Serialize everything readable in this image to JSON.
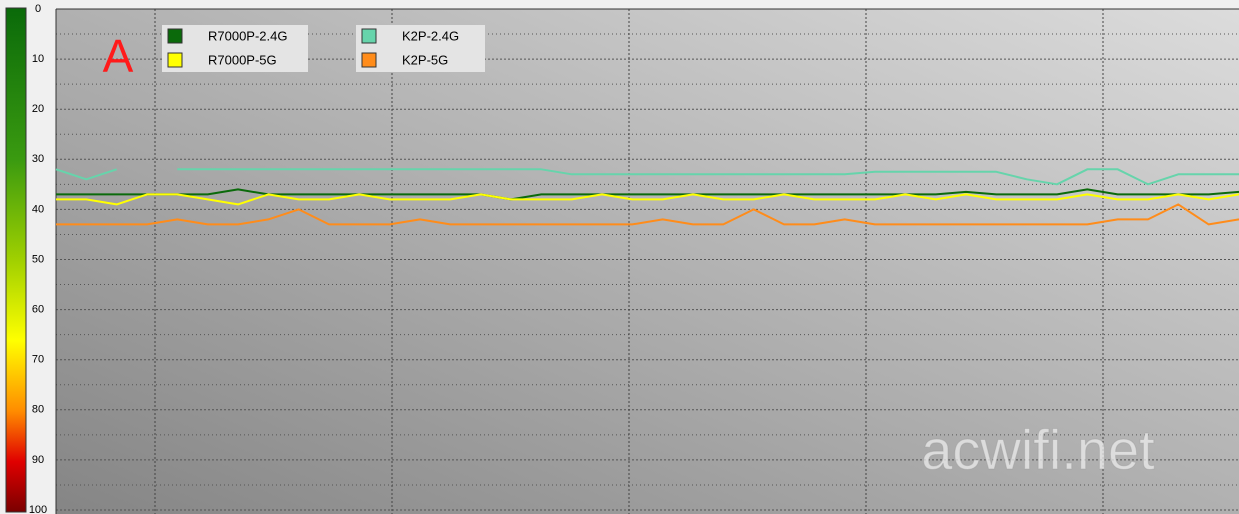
{
  "chart_data": {
    "type": "line",
    "annotation": "A",
    "watermark": "acwifi.net",
    "categories": [
      null,
      null,
      null,
      null,
      null,
      null,
      null,
      null,
      null,
      null,
      null,
      null,
      null,
      null,
      null,
      null,
      null,
      null,
      null,
      null,
      null,
      null,
      null,
      null,
      null,
      null,
      null,
      null,
      null,
      null,
      null,
      null,
      null,
      null,
      null,
      null,
      null,
      null,
      null,
      null
    ],
    "series": [
      {
        "name": "R7000P-2.4G",
        "color": "#0b6a0b",
        "values": [
          37,
          37,
          37,
          37,
          37,
          37,
          36,
          37,
          37,
          37,
          37,
          37,
          37,
          37,
          37,
          38,
          37,
          37,
          37,
          37,
          37,
          37,
          37,
          37,
          37,
          37,
          37,
          37,
          37,
          37,
          36.5,
          37,
          37,
          37,
          36,
          37,
          37,
          37,
          37,
          36.5
        ]
      },
      {
        "name": "R7000P-5G",
        "color": "#ffff00",
        "values": [
          38,
          38,
          39,
          37,
          37,
          38,
          39,
          37,
          38,
          38,
          37,
          38,
          38,
          38,
          37,
          38,
          38,
          38,
          37,
          38,
          38,
          37,
          38,
          38,
          37,
          38,
          38,
          38,
          37,
          38,
          37,
          38,
          38,
          38,
          37,
          38,
          38,
          37,
          38,
          37
        ]
      },
      {
        "name": "K2P-2.4G",
        "color": "#66d4ab",
        "values": [
          32,
          34,
          32,
          null,
          32,
          32,
          32,
          32,
          32,
          32,
          32,
          32,
          32,
          32,
          32,
          32,
          32,
          33,
          33,
          33,
          33,
          33,
          33,
          33,
          33,
          33,
          33,
          32.5,
          32.5,
          32.5,
          32.5,
          32.5,
          34,
          35,
          32,
          32,
          35,
          33,
          33,
          33
        ]
      },
      {
        "name": "K2P-5G",
        "color": "#ff8c1a",
        "values": [
          43,
          43,
          43,
          43,
          42,
          43,
          43,
          42,
          40,
          43,
          43,
          43,
          42,
          43,
          43,
          43,
          43,
          43,
          43,
          43,
          42,
          43,
          43,
          40,
          43,
          43,
          42,
          43,
          43,
          43,
          43,
          43,
          43,
          43,
          43,
          42,
          42,
          39,
          43,
          42
        ]
      }
    ],
    "ylim": [
      0,
      100
    ],
    "y_inverted": true,
    "yticks": [
      0,
      10,
      20,
      30,
      40,
      50,
      60,
      70,
      80,
      90,
      100
    ],
    "y_minor_ticks": [
      5,
      15,
      25,
      35,
      45,
      55,
      65,
      75,
      85,
      95
    ],
    "grid": true
  }
}
